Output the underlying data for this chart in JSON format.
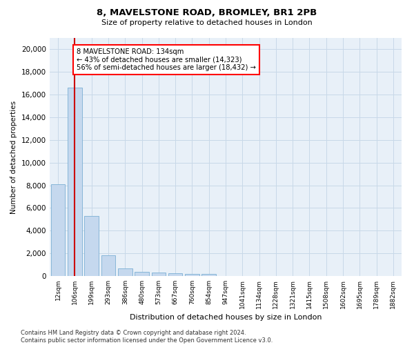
{
  "title_line1": "8, MAVELSTONE ROAD, BROMLEY, BR1 2PB",
  "title_line2": "Size of property relative to detached houses in London",
  "xlabel": "Distribution of detached houses by size in London",
  "ylabel": "Number of detached properties",
  "bar_color": "#c5d8ee",
  "bar_edge_color": "#7aafd4",
  "grid_color": "#c8d8e8",
  "bg_color": "#e8f0f8",
  "annotation_box_text": "8 MAVELSTONE ROAD: 134sqm\n← 43% of detached houses are smaller (14,323)\n56% of semi-detached houses are larger (18,432) →",
  "red_line_color": "#cc0000",
  "red_line_x": 1.0,
  "categories": [
    "12sqm",
    "106sqm",
    "199sqm",
    "293sqm",
    "386sqm",
    "480sqm",
    "573sqm",
    "667sqm",
    "760sqm",
    "854sqm",
    "947sqm",
    "1041sqm",
    "1134sqm",
    "1228sqm",
    "1321sqm",
    "1415sqm",
    "1508sqm",
    "1602sqm",
    "1695sqm",
    "1789sqm",
    "1882sqm"
  ],
  "values": [
    8100,
    16600,
    5300,
    1850,
    700,
    380,
    290,
    230,
    200,
    170,
    0,
    0,
    0,
    0,
    0,
    0,
    0,
    0,
    0,
    0,
    0
  ],
  "ylim": [
    0,
    21000
  ],
  "yticks": [
    0,
    2000,
    4000,
    6000,
    8000,
    10000,
    12000,
    14000,
    16000,
    18000,
    20000
  ],
  "footer_line1": "Contains HM Land Registry data © Crown copyright and database right 2024.",
  "footer_line2": "Contains public sector information licensed under the Open Government Licence v3.0."
}
